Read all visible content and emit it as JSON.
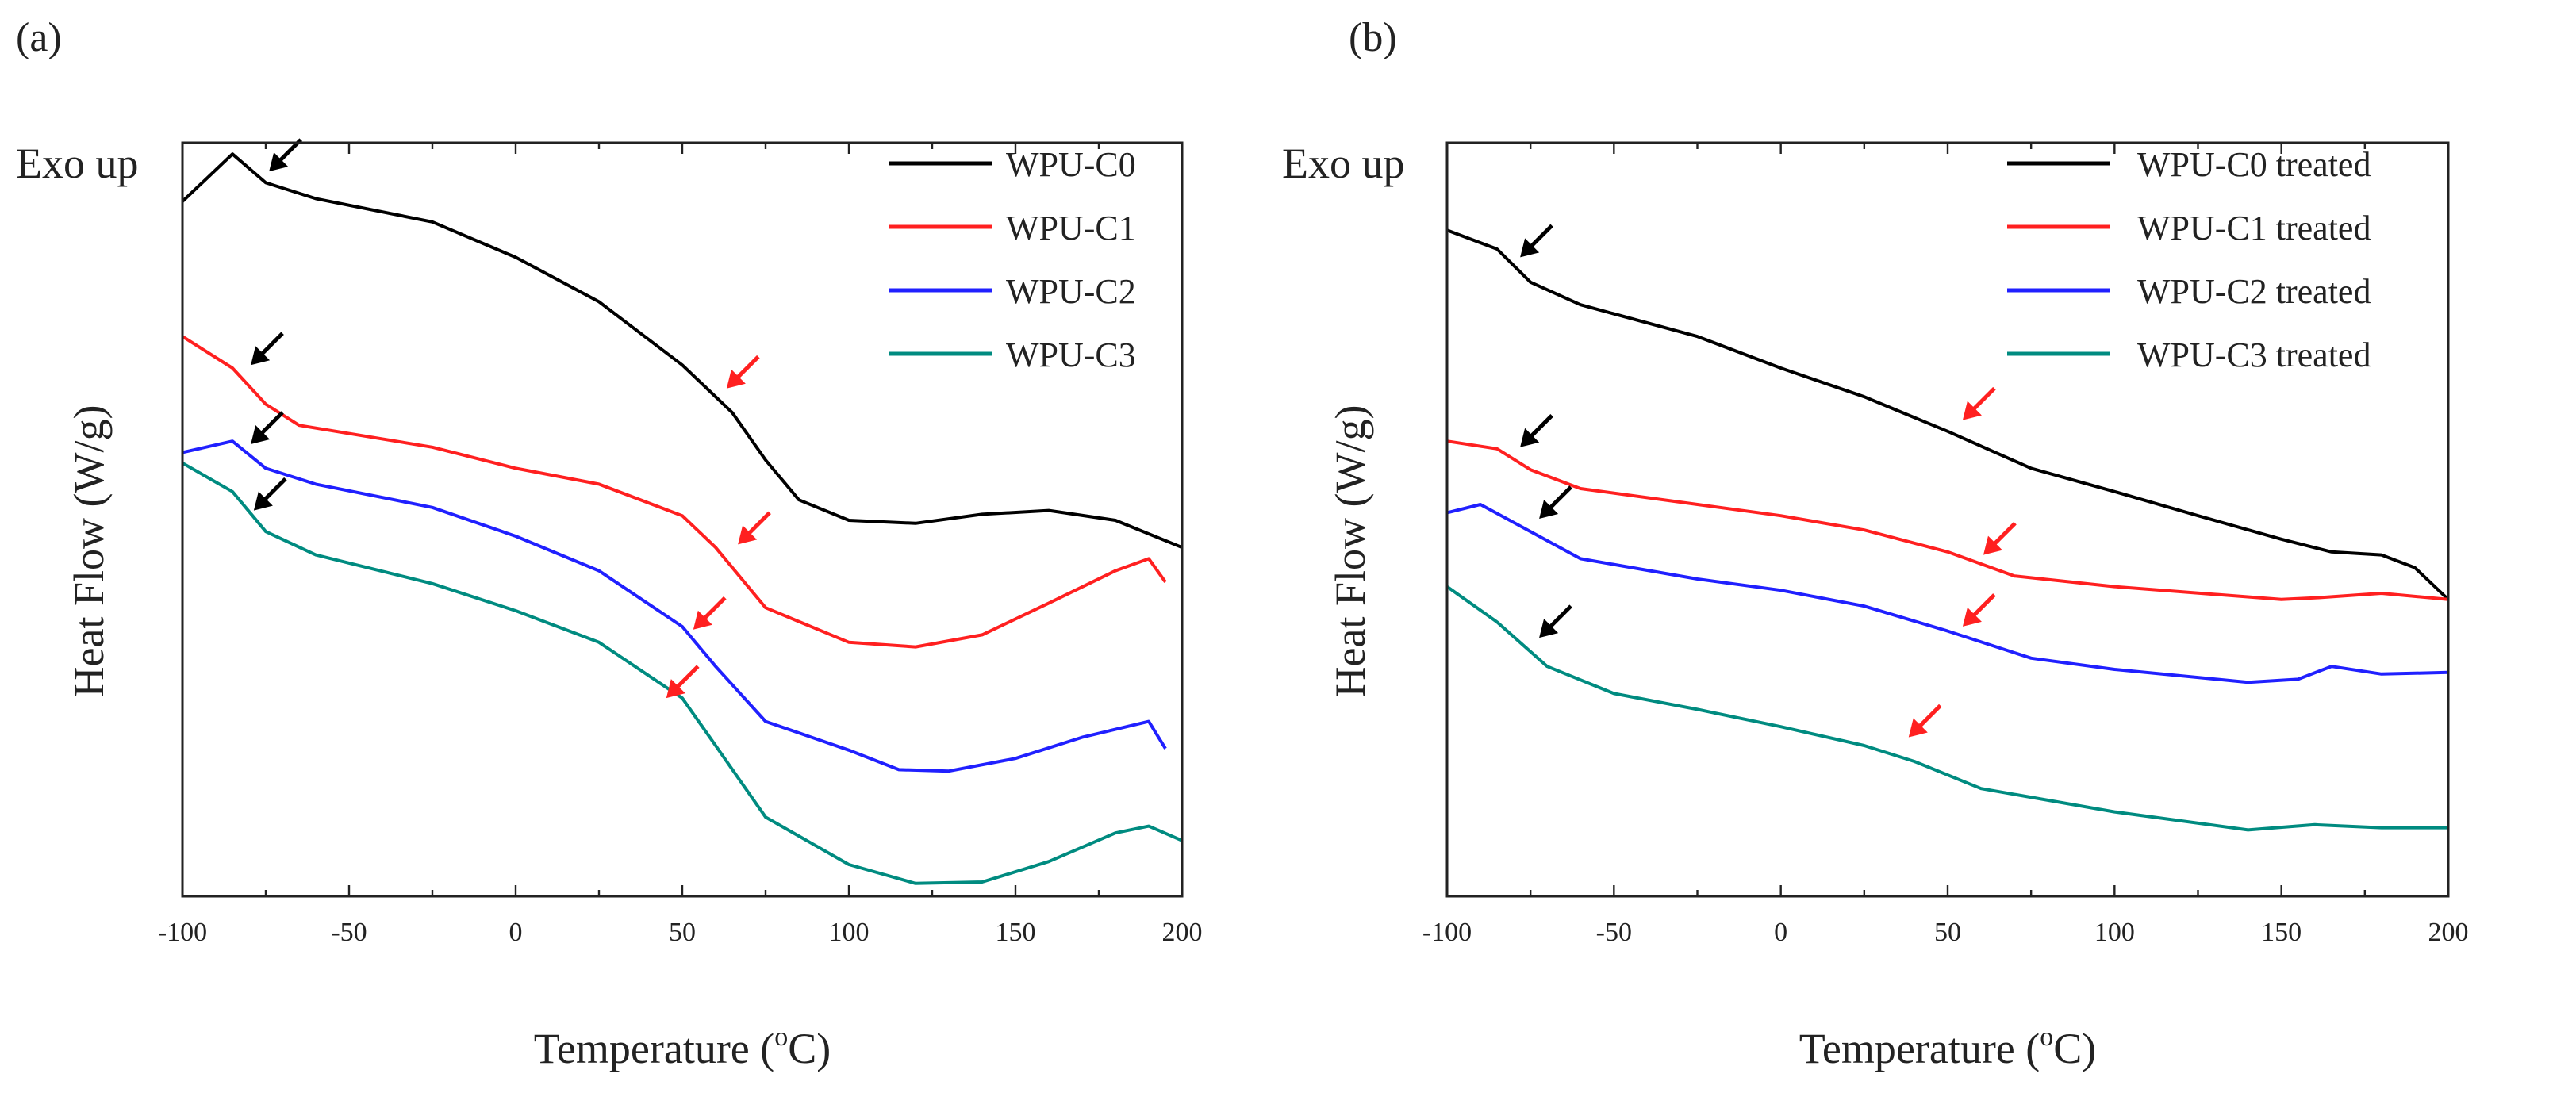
{
  "chart_data": [
    {
      "panel_label": "(a)",
      "type": "line",
      "annotation_top": "Exo up",
      "xlabel": "Temperature (",
      "xlabel_unit_sup": "o",
      "xlabel_unit": "C)",
      "ylabel": "Heat Flow (W/g)",
      "xlim": [
        -100,
        200
      ],
      "ylim": [
        0,
        100
      ],
      "y_units_note": "arbitrary (no y tick labels shown)",
      "xticks": [
        -100,
        -50,
        0,
        50,
        100,
        150,
        200
      ],
      "legend_position": "top-right",
      "series": [
        {
          "name": "WPU-C0",
          "color": "#000000",
          "x": [
            -100,
            -85,
            -75,
            -60,
            -25,
            0,
            25,
            50,
            65,
            75,
            85,
            100,
            120,
            140,
            160,
            180,
            200
          ],
          "y": [
            92.2,
            98.5,
            94.7,
            92.6,
            89.5,
            84.8,
            78.9,
            70.5,
            64.2,
            57.9,
            52.6,
            49.9,
            49.5,
            50.7,
            51.2,
            49.9,
            46.3
          ]
        },
        {
          "name": "WPU-C1",
          "color": "#ff2020",
          "x": [
            -100,
            -85,
            -75,
            -65,
            -25,
            0,
            25,
            50,
            60,
            75,
            100,
            120,
            140,
            160,
            180,
            190,
            195
          ],
          "y": [
            74.3,
            70.1,
            65.3,
            62.5,
            59.6,
            56.8,
            54.7,
            50.5,
            46.3,
            38.3,
            33.7,
            33.1,
            34.7,
            38.9,
            43.2,
            44.8,
            41.7
          ]
        },
        {
          "name": "WPU-C2",
          "color": "#2020ff",
          "x": [
            -100,
            -85,
            -75,
            -60,
            -25,
            0,
            25,
            50,
            60,
            75,
            100,
            115,
            130,
            150,
            170,
            190,
            195
          ],
          "y": [
            58.9,
            60.4,
            56.8,
            54.7,
            51.6,
            47.8,
            43.2,
            35.8,
            30.5,
            23.2,
            19.4,
            16.8,
            16.6,
            18.3,
            21.1,
            23.2,
            19.6
          ]
        },
        {
          "name": "WPU-C3",
          "color": "#008b80",
          "x": [
            -100,
            -85,
            -75,
            -60,
            -25,
            0,
            25,
            50,
            60,
            75,
            100,
            120,
            140,
            160,
            180,
            190,
            200
          ],
          "y": [
            57.5,
            53.7,
            48.4,
            45.3,
            41.5,
            37.9,
            33.7,
            26.3,
            20.0,
            10.5,
            4.2,
            1.7,
            1.9,
            4.6,
            8.4,
            9.3,
            7.4
          ]
        }
      ],
      "arrows": [
        {
          "color": "#000000",
          "x": -74,
          "y": 96.2
        },
        {
          "color": "#000000",
          "x": -79.5,
          "y": 70.5
        },
        {
          "color": "#000000",
          "x": -79.5,
          "y": 60.0
        },
        {
          "color": "#000000",
          "x": -78.6,
          "y": 51.2
        },
        {
          "color": "#ff2020",
          "x": 63.3,
          "y": 67.4
        },
        {
          "color": "#ff2020",
          "x": 66.7,
          "y": 46.7
        },
        {
          "color": "#ff2020",
          "x": 53.3,
          "y": 35.4
        },
        {
          "color": "#ff2020",
          "x": 45.2,
          "y": 26.3
        }
      ]
    },
    {
      "panel_label": "(b)",
      "type": "line",
      "annotation_top": "Exo up",
      "xlabel": "Temperature (",
      "xlabel_unit_sup": "o",
      "xlabel_unit": "C)",
      "ylabel": "Heat Flow (W/g)",
      "xlim": [
        -100,
        200
      ],
      "ylim": [
        0,
        100
      ],
      "y_units_note": "arbitrary (no y tick labels shown)",
      "xticks": [
        -100,
        -50,
        0,
        50,
        100,
        150,
        200
      ],
      "legend_position": "top-right",
      "series": [
        {
          "name": "WPU-C0 treated",
          "color": "#000000",
          "x": [
            -100,
            -85,
            -75,
            -60,
            -25,
            0,
            25,
            50,
            75,
            100,
            125,
            150,
            165,
            180,
            190,
            200
          ],
          "y": [
            88.4,
            85.9,
            81.5,
            78.5,
            74.3,
            70.1,
            66.3,
            61.7,
            56.8,
            53.7,
            50.5,
            47.4,
            45.7,
            45.3,
            43.6,
            39.4
          ]
        },
        {
          "name": "WPU-C1 treated",
          "color": "#ff2020",
          "x": [
            -100,
            -85,
            -75,
            -60,
            -25,
            0,
            25,
            50,
            70,
            100,
            150,
            160,
            180,
            200
          ],
          "y": [
            60.4,
            59.4,
            56.6,
            54.1,
            52.0,
            50.5,
            48.6,
            45.7,
            42.5,
            41.1,
            39.4,
            39.6,
            40.2,
            39.4
          ]
        },
        {
          "name": "WPU-C2 treated",
          "color": "#2020ff",
          "x": [
            -100,
            -90,
            -75,
            -60,
            -25,
            0,
            25,
            50,
            75,
            100,
            140,
            155,
            165,
            180,
            200
          ],
          "y": [
            50.9,
            52.0,
            48.4,
            44.8,
            42.1,
            40.6,
            38.5,
            35.2,
            31.6,
            30.1,
            28.4,
            28.8,
            30.5,
            29.5,
            29.7
          ]
        },
        {
          "name": "WPU-C3 treated",
          "color": "#008b80",
          "x": [
            -100,
            -85,
            -70,
            -50,
            -25,
            0,
            25,
            40,
            60,
            100,
            140,
            160,
            180,
            200
          ],
          "y": [
            41.1,
            36.4,
            30.5,
            26.9,
            24.8,
            22.5,
            20.0,
            17.9,
            14.3,
            11.2,
            8.8,
            9.5,
            9.1,
            9.1
          ]
        }
      ],
      "arrows": [
        {
          "color": "#000000",
          "x": -78.1,
          "y": 84.8
        },
        {
          "color": "#000000",
          "x": -78.1,
          "y": 59.6
        },
        {
          "color": "#000000",
          "x": -72.4,
          "y": 50.1
        },
        {
          "color": "#000000",
          "x": -72.4,
          "y": 34.3
        },
        {
          "color": "#ff2020",
          "x": 54.5,
          "y": 63.2
        },
        {
          "color": "#ff2020",
          "x": 60.7,
          "y": 45.3
        },
        {
          "color": "#ff2020",
          "x": 54.5,
          "y": 35.8
        },
        {
          "color": "#ff2020",
          "x": 38.3,
          "y": 21.1
        }
      ]
    }
  ]
}
